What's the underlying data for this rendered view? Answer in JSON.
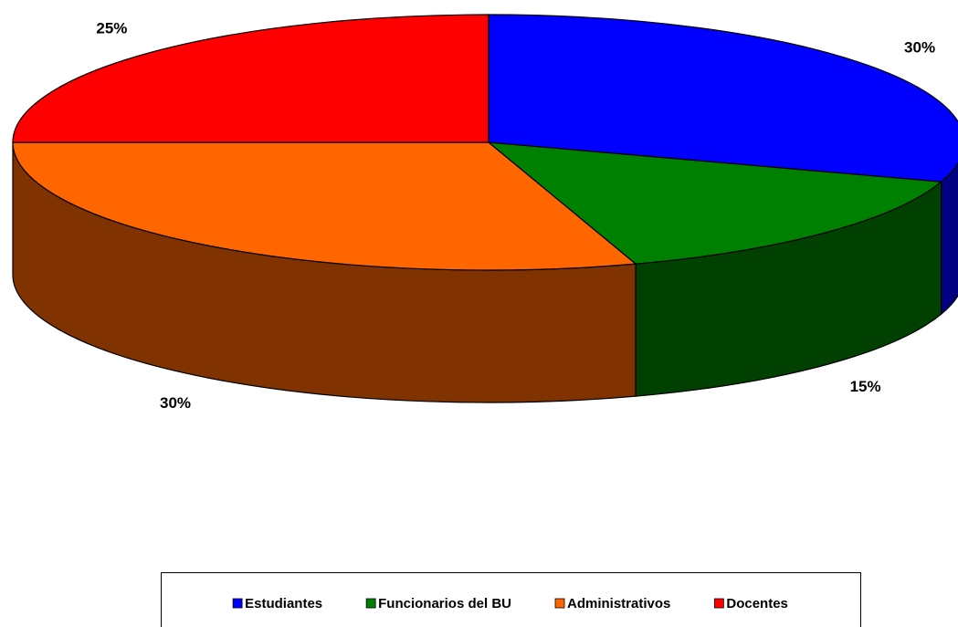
{
  "chart_data": {
    "type": "pie",
    "categories": [
      "Estudiantes",
      "Funcionarios del BU",
      "Administrativos",
      "Docentes"
    ],
    "values": [
      30,
      15,
      30,
      25
    ],
    "value_labels": [
      "30%",
      "15%",
      "30%",
      "25%"
    ],
    "colors": [
      "#0000ff",
      "#008000",
      "#ff6600",
      "#ff0000"
    ],
    "legend": "bottom"
  }
}
